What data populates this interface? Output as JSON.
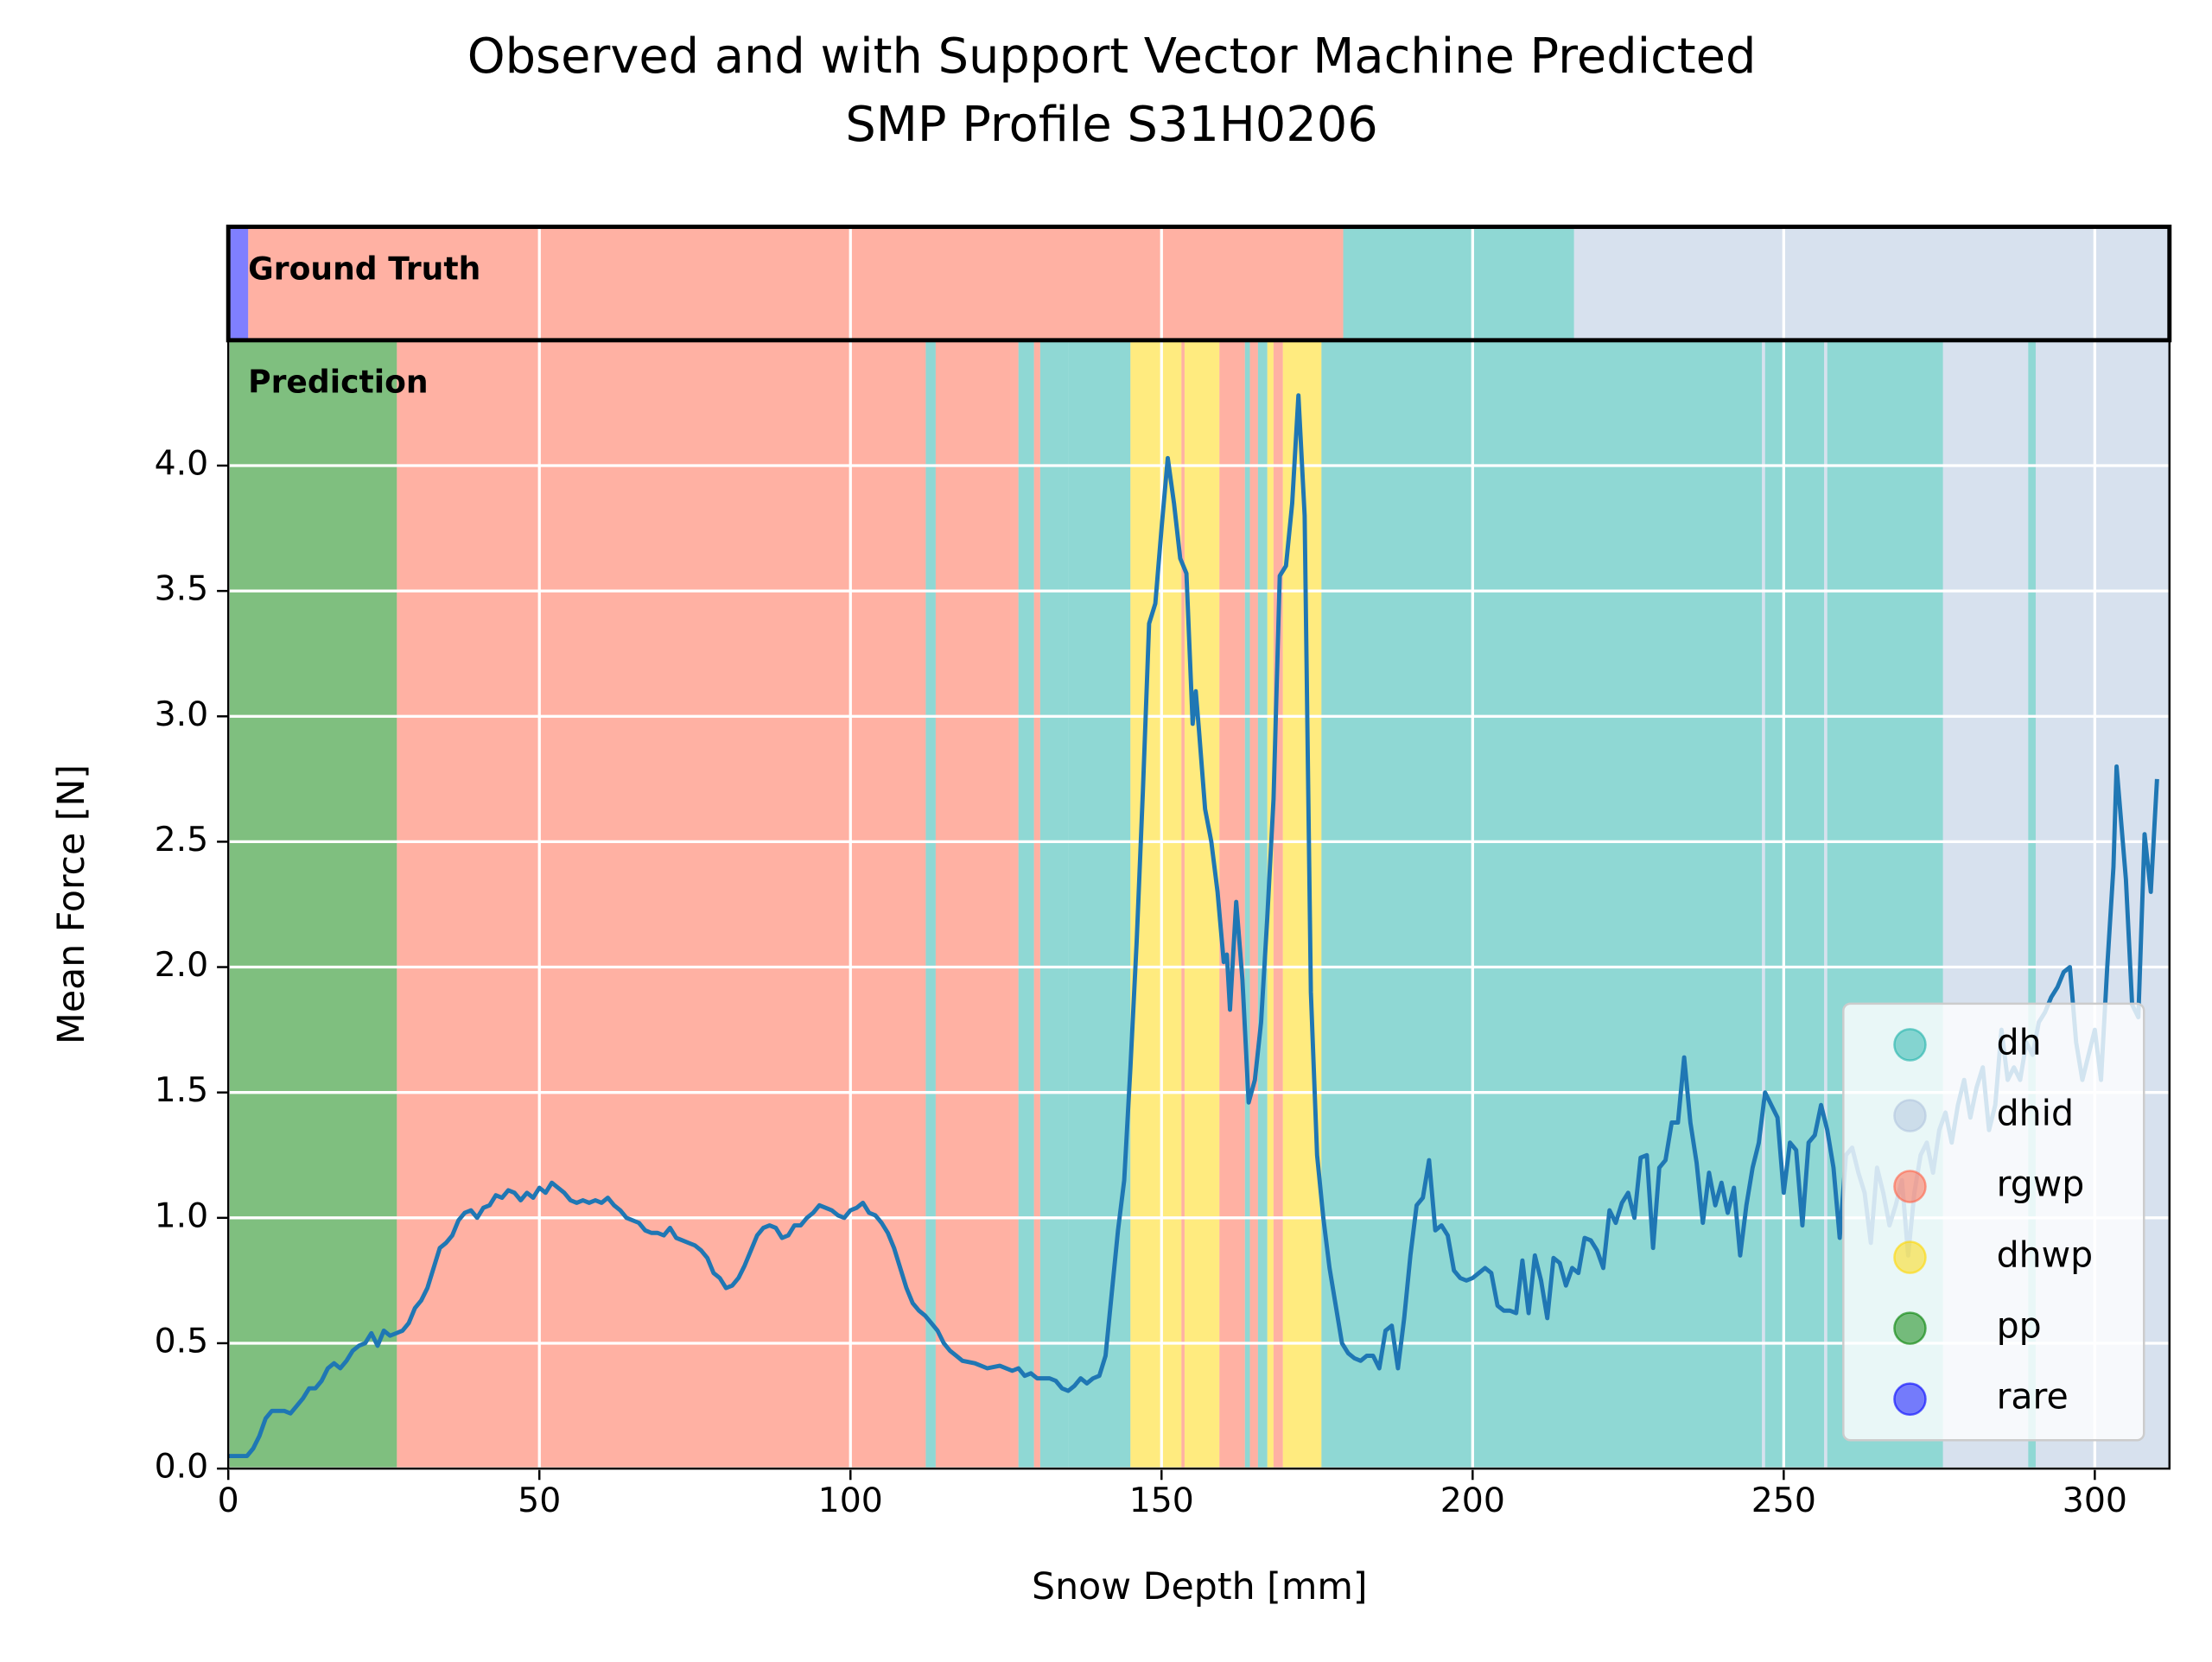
{
  "chart_data": {
    "type": "line",
    "title": [
      "Observed and with Support Vector Machine Predicted",
      "SMP Profile S31H0206"
    ],
    "xlabel": "Snow Depth [mm]",
    "ylabel": "Mean Force [N]",
    "xlim": [
      0,
      312
    ],
    "ylim": [
      0,
      4.5
    ],
    "xticks": [
      0,
      50,
      100,
      150,
      200,
      250,
      300
    ],
    "yticks": [
      {
        "value": 0,
        "label": "0.0"
      },
      {
        "value": 0.5,
        "label": "0.5"
      },
      {
        "value": 1,
        "label": "1.0"
      },
      {
        "value": 1.5,
        "label": "1.5"
      },
      {
        "value": 2,
        "label": "2.0"
      },
      {
        "value": 2.5,
        "label": "2.5"
      },
      {
        "value": 3,
        "label": "3.0"
      },
      {
        "value": 3.5,
        "label": "3.5"
      },
      {
        "value": 4,
        "label": "4.0"
      }
    ],
    "grid": true,
    "legend_position": "lower right",
    "band_alpha": 0.5,
    "classes": [
      {
        "name": "dh",
        "color": "#20b2aa"
      },
      {
        "name": "dhid",
        "color": "#b0c4de"
      },
      {
        "name": "rgwp",
        "color": "#ff6347"
      },
      {
        "name": "dhwp",
        "color": "#ffd700"
      },
      {
        "name": "pp",
        "color": "#008000"
      },
      {
        "name": "rare",
        "color": "#0000ff"
      }
    ],
    "ground_truth": {
      "label": "Ground Truth",
      "segments": [
        {
          "start": 0,
          "end": 3.2,
          "class": "rare"
        },
        {
          "start": 3.2,
          "end": 179.2,
          "class": "rgwp"
        },
        {
          "start": 179.2,
          "end": 216.3,
          "class": "dh"
        },
        {
          "start": 216.3,
          "end": 312,
          "class": "dhid"
        }
      ]
    },
    "prediction": {
      "label": "Prediction",
      "segments": [
        {
          "start": 0,
          "end": 27.1,
          "class": "pp"
        },
        {
          "start": 27.1,
          "end": 112.1,
          "class": "rgwp"
        },
        {
          "start": 112.1,
          "end": 113.7,
          "class": "dh"
        },
        {
          "start": 113.7,
          "end": 127,
          "class": "rgwp"
        },
        {
          "start": 127,
          "end": 129.5,
          "class": "dh"
        },
        {
          "start": 129.5,
          "end": 130.5,
          "class": "rgwp"
        },
        {
          "start": 130.5,
          "end": 135,
          "class": "dh"
        },
        {
          "start": 135,
          "end": 145,
          "class": "dh"
        },
        {
          "start": 145,
          "end": 153.2,
          "class": "dhwp"
        },
        {
          "start": 153.2,
          "end": 153.7,
          "class": "rgwp"
        },
        {
          "start": 153.7,
          "end": 159.3,
          "class": "dhwp"
        },
        {
          "start": 159.3,
          "end": 163.4,
          "class": "rgwp"
        },
        {
          "start": 163.4,
          "end": 164.2,
          "class": "dh"
        },
        {
          "start": 164.2,
          "end": 165.5,
          "class": "rgwp"
        },
        {
          "start": 165.5,
          "end": 167,
          "class": "dh"
        },
        {
          "start": 167,
          "end": 168,
          "class": "dhwp"
        },
        {
          "start": 168,
          "end": 169.5,
          "class": "rgwp"
        },
        {
          "start": 169.5,
          "end": 175.7,
          "class": "dhwp"
        },
        {
          "start": 175.7,
          "end": 246.5,
          "class": "dh"
        },
        {
          "start": 246.5,
          "end": 247,
          "class": "dhid"
        },
        {
          "start": 247,
          "end": 256.5,
          "class": "dh"
        },
        {
          "start": 256.5,
          "end": 257,
          "class": "dhid"
        },
        {
          "start": 257,
          "end": 275.6,
          "class": "dh"
        },
        {
          "start": 275.6,
          "end": 289.3,
          "class": "dhid"
        },
        {
          "start": 289.3,
          "end": 290.5,
          "class": "dh"
        },
        {
          "start": 290.5,
          "end": 312,
          "class": "dhid"
        }
      ]
    },
    "x": [
      0,
      3,
      4,
      5,
      6,
      7,
      9,
      10,
      11,
      12,
      13,
      14,
      15,
      16,
      17,
      18,
      19,
      20,
      21,
      22,
      23,
      24,
      25,
      26,
      27,
      28,
      29,
      30,
      31,
      32,
      33,
      34,
      35,
      36,
      37,
      38,
      39,
      40,
      41,
      42,
      43,
      44,
      45,
      46,
      47,
      48,
      49,
      50,
      51,
      52,
      53,
      54,
      55,
      56,
      57,
      58,
      59,
      60,
      61,
      62,
      63,
      64,
      65,
      66,
      67,
      68,
      69,
      70,
      71,
      72,
      73,
      74,
      75,
      76,
      77,
      78,
      79,
      80,
      81,
      82,
      83,
      84,
      85,
      86,
      87,
      88,
      89,
      90,
      91,
      92,
      93,
      94,
      95,
      96,
      97,
      98,
      99,
      100,
      101,
      102,
      103,
      104,
      105,
      106,
      107,
      108,
      109,
      110,
      111,
      112,
      113,
      114,
      115,
      116,
      117,
      118,
      120,
      122,
      124,
      126,
      127,
      128,
      129,
      130,
      132,
      133,
      134,
      135,
      136,
      137,
      138,
      139,
      140,
      141,
      142,
      143,
      144,
      145,
      146,
      147,
      148,
      149,
      150,
      151,
      152,
      153,
      154,
      155,
      155.5,
      156,
      157,
      158,
      159,
      160,
      160.5,
      161,
      162,
      163,
      164,
      165,
      166,
      167,
      168,
      169,
      170,
      171,
      172,
      173,
      174,
      175,
      176,
      177,
      178,
      179,
      180,
      181,
      182,
      183,
      184,
      185,
      186,
      187,
      188,
      189,
      190,
      191,
      192,
      193,
      194,
      195,
      196,
      197,
      198,
      199,
      200,
      201,
      202,
      203,
      204,
      205,
      206,
      207,
      208,
      209,
      210,
      211,
      212,
      213,
      214,
      215,
      216,
      217,
      218,
      219,
      220,
      221,
      222,
      223,
      224,
      225,
      226,
      227,
      228,
      229,
      230,
      231,
      232,
      233,
      234,
      235,
      236,
      237,
      238,
      239,
      240,
      241,
      242,
      243,
      244,
      245,
      246,
      247,
      248,
      249,
      250,
      251,
      252,
      253,
      254,
      255,
      256,
      257,
      258,
      259,
      260,
      261,
      262,
      263,
      264,
      265,
      266,
      267,
      268,
      269,
      270,
      271,
      272,
      273,
      274,
      275,
      276,
      277,
      278,
      279,
      280,
      281,
      282,
      283,
      284,
      285,
      286,
      287,
      288,
      289,
      290,
      291,
      292,
      293,
      294,
      295,
      296,
      297,
      298,
      299,
      300,
      301,
      302,
      303,
      303.5,
      304,
      305,
      306,
      307,
      308,
      309,
      310
    ],
    "series": [
      {
        "color": "#1f77b4",
        "values": [
          0.05,
          0.05,
          0.08,
          0.13,
          0.2,
          0.23,
          0.23,
          0.22,
          0.25,
          0.28,
          0.32,
          0.32,
          0.35,
          0.4,
          0.42,
          0.4,
          0.43,
          0.47,
          0.49,
          0.5,
          0.54,
          0.49,
          0.55,
          0.53,
          0.54,
          0.55,
          0.58,
          0.64,
          0.67,
          0.72,
          0.8,
          0.88,
          0.9,
          0.93,
          0.99,
          1.02,
          1.03,
          1.0,
          1.04,
          1.05,
          1.09,
          1.08,
          1.11,
          1.1,
          1.07,
          1.1,
          1.08,
          1.12,
          1.1,
          1.14,
          1.12,
          1.1,
          1.07,
          1.06,
          1.07,
          1.06,
          1.07,
          1.06,
          1.08,
          1.05,
          1.03,
          1.0,
          0.99,
          0.98,
          0.95,
          0.94,
          0.94,
          0.93,
          0.96,
          0.92,
          0.91,
          0.9,
          0.89,
          0.87,
          0.84,
          0.78,
          0.76,
          0.72,
          0.73,
          0.76,
          0.81,
          0.87,
          0.93,
          0.96,
          0.97,
          0.96,
          0.92,
          0.93,
          0.97,
          0.97,
          1.0,
          1.02,
          1.05,
          1.04,
          1.03,
          1.01,
          1.0,
          1.03,
          1.04,
          1.06,
          1.02,
          1.01,
          0.98,
          0.94,
          0.88,
          0.8,
          0.72,
          0.66,
          0.63,
          0.61,
          0.58,
          0.55,
          0.5,
          0.47,
          0.45,
          0.43,
          0.42,
          0.4,
          0.41,
          0.39,
          0.4,
          0.37,
          0.38,
          0.36,
          0.36,
          0.35,
          0.32,
          0.31,
          0.33,
          0.36,
          0.34,
          0.36,
          0.37,
          0.45,
          0.7,
          0.95,
          1.15,
          1.6,
          2.1,
          2.7,
          3.37,
          3.45,
          3.75,
          4.03,
          3.85,
          3.63,
          3.57,
          2.97,
          3.1,
          2.95,
          2.63,
          2.5,
          2.3,
          2.02,
          2.05,
          1.83,
          2.26,
          1.95,
          1.46,
          1.55,
          1.78,
          2.2,
          2.67,
          3.56,
          3.6,
          3.85,
          4.28,
          3.8,
          1.9,
          1.25,
          1.0,
          0.8,
          0.65,
          0.5,
          0.46,
          0.44,
          0.43,
          0.45,
          0.45,
          0.4,
          0.55,
          0.57,
          0.4,
          0.6,
          0.85,
          1.05,
          1.08,
          1.23,
          0.95,
          0.97,
          0.93,
          0.79,
          0.76,
          0.75,
          0.76,
          0.78,
          0.8,
          0.78,
          0.65,
          0.63,
          0.63,
          0.62,
          0.83,
          0.62,
          0.85,
          0.75,
          0.6,
          0.84,
          0.82,
          0.73,
          0.8,
          0.78,
          0.92,
          0.91,
          0.87,
          0.8,
          1.03,
          0.98,
          1.06,
          1.1,
          1.0,
          1.24,
          1.25,
          0.88,
          1.2,
          1.23,
          1.38,
          1.38,
          1.64,
          1.38,
          1.22,
          0.98,
          1.18,
          1.05,
          1.14,
          1.02,
          1.12,
          0.85,
          1.05,
          1.2,
          1.3,
          1.5,
          1.45,
          1.4,
          1.1,
          1.3,
          1.27,
          0.97,
          1.3,
          1.33,
          1.45,
          1.35,
          1.2,
          0.92,
          1.25,
          1.28,
          1.18,
          1.1,
          0.9,
          1.2,
          1.1,
          0.97,
          1.05,
          1.15,
          0.85,
          1.1,
          1.25,
          1.3,
          1.18,
          1.35,
          1.42,
          1.3,
          1.45,
          1.55,
          1.4,
          1.52,
          1.6,
          1.35,
          1.45,
          1.75,
          1.55,
          1.6,
          1.55,
          1.7,
          1.65,
          1.78,
          1.82,
          1.88,
          1.92,
          1.98,
          2.0,
          1.7,
          1.55,
          1.65,
          1.75,
          1.55,
          2.0,
          2.4,
          2.8,
          2.65,
          2.35,
          1.85,
          1.8,
          2.53,
          2.3,
          2.75
        ]
      }
    ]
  }
}
